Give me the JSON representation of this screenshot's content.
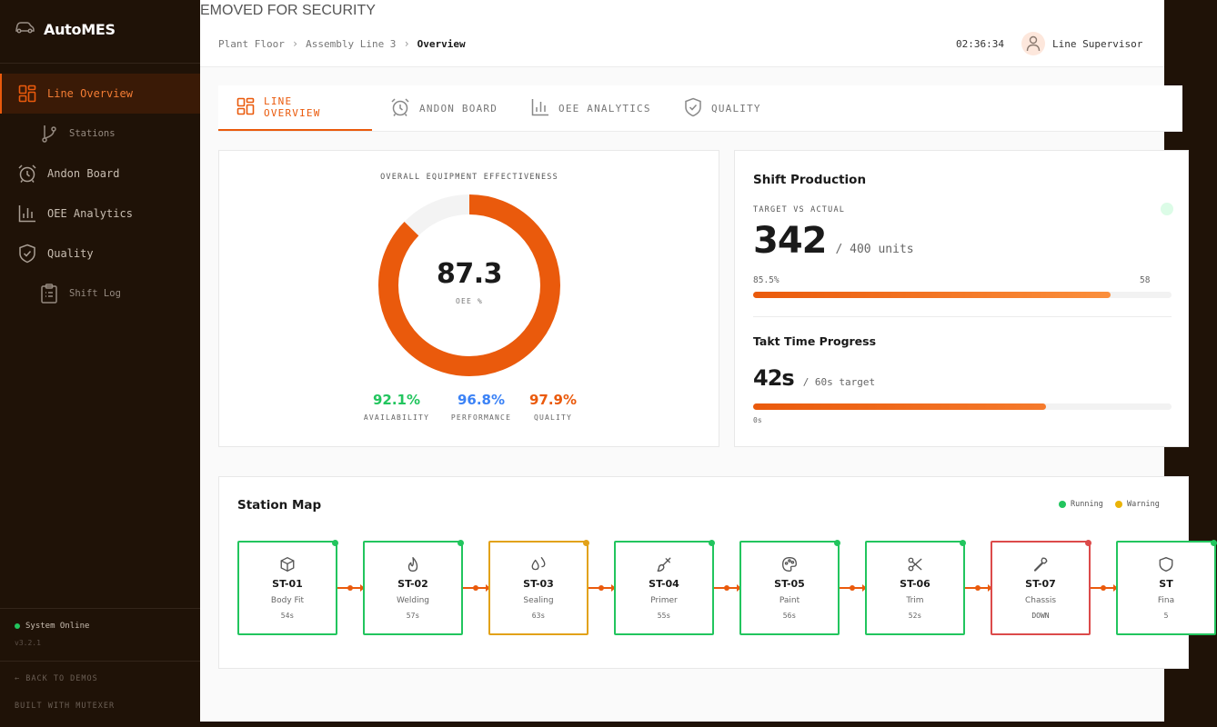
{
  "app": {
    "name": "AutoMES",
    "version": "v3.2.1",
    "status": "System Online"
  },
  "sidebar": {
    "items": [
      {
        "label": "Line Overview"
      },
      {
        "label": "Stations"
      },
      {
        "label": "Andon Board"
      },
      {
        "label": "OEE Analytics"
      },
      {
        "label": "Quality"
      },
      {
        "label": "Shift Log"
      }
    ],
    "back_label": "← BACK TO DEMOS",
    "built_label": "BUILT WITH MUTEXER"
  },
  "header": {
    "banner": "EMOVED FOR SECURITY",
    "breadcrumb": [
      "Plant Floor",
      "Assembly Line 3",
      "Overview"
    ],
    "clock": "02:36:34",
    "user": "Line Supervisor"
  },
  "tabs": [
    {
      "label": "LINE OVERVIEW"
    },
    {
      "label": "ANDON BOARD"
    },
    {
      "label": "OEE ANALYTICS"
    },
    {
      "label": "QUALITY"
    }
  ],
  "oee": {
    "title": "OVERALL EQUIPMENT EFFECTIVENESS",
    "value": "87.3",
    "unit": "OEE %",
    "fraction": 0.873,
    "metrics": [
      {
        "value": "92.1%",
        "label": "AVAILABILITY",
        "color": "#22c55e"
      },
      {
        "value": "96.8%",
        "label": "PERFORMANCE",
        "color": "#3b82f6"
      },
      {
        "value": "97.9%",
        "label": "QUALITY",
        "color": "#ea5a0c"
      }
    ]
  },
  "production": {
    "title": "Shift Production",
    "label": "TARGET VS ACTUAL",
    "actual": "342",
    "target": "/ 400 units",
    "percent": "85.5%",
    "right_value": "58",
    "progress": 0.855
  },
  "takt": {
    "title": "Takt Time Progress",
    "value": "42s",
    "target": "/ 60s target",
    "start": "0s",
    "progress": 0.7
  },
  "station_map": {
    "title": "Station Map",
    "legend": [
      {
        "label": "Running",
        "color": "#22c55e"
      },
      {
        "label": "Warning",
        "color": "#eab308"
      }
    ],
    "stations": [
      {
        "id": "ST-01",
        "name": "Body Fit",
        "time": "54s",
        "status": "running",
        "icon": "cube-icon"
      },
      {
        "id": "ST-02",
        "name": "Welding",
        "time": "57s",
        "status": "running",
        "icon": "flame-icon"
      },
      {
        "id": "ST-03",
        "name": "Sealing",
        "time": "63s",
        "status": "warning",
        "icon": "droplets-icon"
      },
      {
        "id": "ST-04",
        "name": "Primer",
        "time": "55s",
        "status": "running",
        "icon": "paintbrush-icon"
      },
      {
        "id": "ST-05",
        "name": "Paint",
        "time": "56s",
        "status": "running",
        "icon": "palette-icon"
      },
      {
        "id": "ST-06",
        "name": "Trim",
        "time": "52s",
        "status": "running",
        "icon": "scissors-icon"
      },
      {
        "id": "ST-07",
        "name": "Chassis",
        "time": "DOWN",
        "status": "down",
        "icon": "wrench-icon"
      },
      {
        "id": "ST",
        "name": "Fina",
        "time": "5",
        "status": "running",
        "icon": "shield-icon"
      }
    ],
    "status_colors": {
      "running": "#22c55e",
      "warning": "#e2a219",
      "down": "#dc4a4a"
    }
  }
}
